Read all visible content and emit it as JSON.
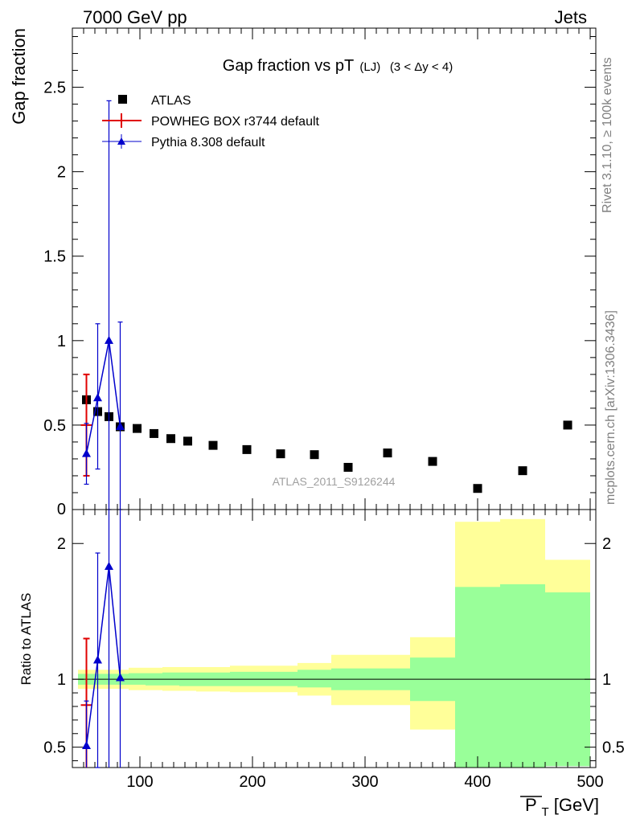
{
  "header": {
    "left": "7000 GeV pp",
    "right": "Jets"
  },
  "side": {
    "top": "Rivet 3.1.10, ≥ 100k events",
    "bottom": "mcplots.cern.ch [arXiv:1306.3436]"
  },
  "analysis_tag": "ATLAS_2011_S9126244",
  "chart_data": [
    {
      "type": "scatter",
      "panel": "main",
      "title_main": "Gap fraction vs pT",
      "title_sub": "(LJ)",
      "title_range": "(3 < Δy < 4)",
      "ylabel": "Gap fraction",
      "xlim": [
        40,
        505
      ],
      "ylim": [
        0,
        2.85
      ],
      "yticks": [
        0.5,
        1,
        1.5,
        2,
        2.5
      ],
      "ytick_labels": [
        "0.5",
        "1",
        "1.5",
        "2",
        "2.5"
      ],
      "ytick_bottom_label": "0",
      "legend": {
        "position": "top-left",
        "entries": [
          "ATLAS",
          "POWHEG BOX r3744 default",
          "Pythia 8.308 default"
        ]
      },
      "series": [
        {
          "name": "ATLAS",
          "marker": "square",
          "color": "#000000",
          "x": [
            52.5,
            62.5,
            72.5,
            82.5,
            97.5,
            112.5,
            127.5,
            142.5,
            165,
            195,
            225,
            255,
            285,
            320,
            360,
            400,
            440,
            480
          ],
          "y": [
            0.65,
            0.58,
            0.55,
            0.49,
            0.48,
            0.45,
            0.42,
            0.405,
            0.38,
            0.355,
            0.33,
            0.325,
            0.25,
            0.335,
            0.285,
            0.125,
            0.23,
            0.5
          ]
        },
        {
          "name": "POWHEG BOX r3744 default",
          "marker": "none",
          "color": "#e00000",
          "x": [
            52.5
          ],
          "xerr": [
            5
          ],
          "y": [
            0.5
          ],
          "yerr_low": [
            0.3
          ],
          "yerr_high": [
            0.3
          ]
        },
        {
          "name": "Pythia 8.308 default",
          "marker": "triangle",
          "color": "#0000cc",
          "x": [
            52.5,
            62.5,
            72.5,
            82.5
          ],
          "y": [
            0.33,
            0.66,
            1.0,
            0.49
          ],
          "yerr_low": [
            0.18,
            0.42,
            1.0,
            0.49
          ],
          "yerr_high": [
            0.18,
            0.44,
            1.42,
            0.62
          ]
        }
      ]
    },
    {
      "type": "line",
      "panel": "ratio",
      "ylabel": "Ratio to ATLAS",
      "xlabel": "P_T [GeV]",
      "xlabel_main": "P",
      "xlabel_sub": "T",
      "xlabel_unit": " [GeV]",
      "xlim": [
        40,
        505
      ],
      "ylim": [
        0.35,
        2.25
      ],
      "xticks": [
        100,
        200,
        300,
        400,
        500
      ],
      "xtick_labels": [
        "100",
        "200",
        "300",
        "400",
        "500"
      ],
      "yticks": [
        0.5,
        1,
        2
      ],
      "ytick_labels": [
        "0.5",
        "1",
        "2"
      ],
      "reference_line": 1,
      "bands": {
        "x_edges": [
          45,
          60,
          70,
          80,
          90,
          105,
          120,
          135,
          150,
          180,
          210,
          240,
          270,
          300,
          340,
          380,
          420,
          460,
          500
        ],
        "inner_color": "#99ff99",
        "outer_color": "#ffff99",
        "inner_low": [
          0.96,
          0.96,
          0.96,
          0.96,
          0.96,
          0.955,
          0.955,
          0.95,
          0.95,
          0.95,
          0.95,
          0.94,
          0.92,
          0.92,
          0.84,
          0.32,
          0.3,
          0.36
        ],
        "inner_high": [
          1.04,
          1.04,
          1.04,
          1.04,
          1.045,
          1.045,
          1.05,
          1.05,
          1.05,
          1.055,
          1.055,
          1.07,
          1.08,
          1.08,
          1.16,
          1.68,
          1.7,
          1.64
        ],
        "outer_low": [
          0.93,
          0.93,
          0.93,
          0.93,
          0.92,
          0.92,
          0.915,
          0.915,
          0.91,
          0.905,
          0.905,
          0.88,
          0.81,
          0.81,
          0.63,
          0.57,
          0.52,
          0.62
        ],
        "outer_high": [
          1.07,
          1.07,
          1.07,
          1.07,
          1.085,
          1.085,
          1.09,
          1.09,
          1.09,
          1.1,
          1.1,
          1.12,
          1.18,
          1.18,
          1.31,
          2.16,
          2.18,
          1.88
        ]
      },
      "series": [
        {
          "name": "POWHEG BOX r3744 default",
          "color": "#e00000",
          "x": [
            52.5
          ],
          "xerr": [
            5
          ],
          "y": [
            0.81
          ],
          "yerr_low": [
            0.46
          ],
          "yerr_high": [
            0.49
          ]
        },
        {
          "name": "Pythia 8.308 default",
          "color": "#0000cc",
          "x": [
            52.5,
            62.5,
            72.5,
            82.5
          ],
          "y": [
            0.51,
            1.14,
            1.83,
            1.01
          ],
          "yerr_low": [
            0.33,
            0.79,
            1.83,
            1.01
          ],
          "yerr_high": [
            0.33,
            0.79,
            2.55,
            1.26
          ]
        }
      ]
    }
  ]
}
